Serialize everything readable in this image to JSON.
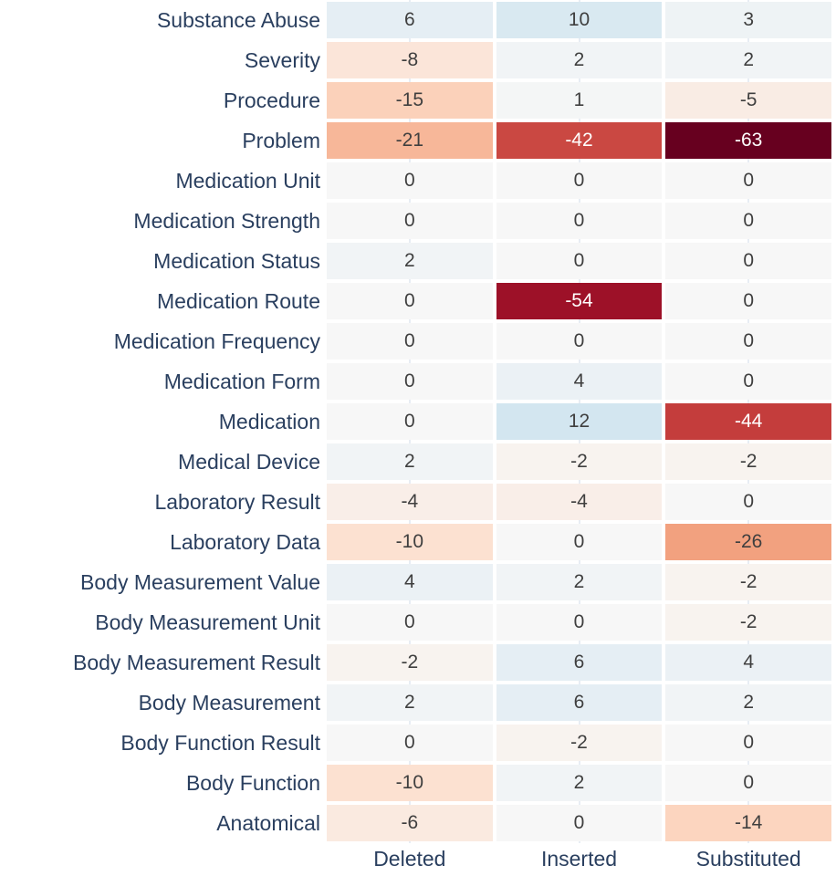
{
  "chart_data": {
    "type": "heatmap",
    "columns": [
      "Deleted",
      "Inserted",
      "Substituted"
    ],
    "rows": [
      {
        "label": "Substance Abuse",
        "values": [
          6,
          10,
          3
        ]
      },
      {
        "label": "Severity",
        "values": [
          -8,
          2,
          2
        ]
      },
      {
        "label": "Procedure",
        "values": [
          -15,
          1,
          -5
        ]
      },
      {
        "label": "Problem",
        "values": [
          -21,
          -42,
          -63
        ]
      },
      {
        "label": "Medication Unit",
        "values": [
          0,
          0,
          0
        ]
      },
      {
        "label": "Medication Strength",
        "values": [
          0,
          0,
          0
        ]
      },
      {
        "label": "Medication Status",
        "values": [
          2,
          0,
          0
        ]
      },
      {
        "label": "Medication Route",
        "values": [
          0,
          -54,
          0
        ]
      },
      {
        "label": "Medication Frequency",
        "values": [
          0,
          0,
          0
        ]
      },
      {
        "label": "Medication Form",
        "values": [
          0,
          4,
          0
        ]
      },
      {
        "label": "Medication",
        "values": [
          0,
          12,
          -44
        ]
      },
      {
        "label": "Medical Device",
        "values": [
          2,
          -2,
          -2
        ]
      },
      {
        "label": "Laboratory Result",
        "values": [
          -4,
          -4,
          0
        ]
      },
      {
        "label": "Laboratory Data",
        "values": [
          -10,
          0,
          -26
        ]
      },
      {
        "label": "Body Measurement Value",
        "values": [
          4,
          2,
          -2
        ]
      },
      {
        "label": "Body Measurement Unit",
        "values": [
          0,
          0,
          -2
        ]
      },
      {
        "label": "Body Measurement Result",
        "values": [
          -2,
          6,
          4
        ]
      },
      {
        "label": "Body Measurement",
        "values": [
          2,
          6,
          2
        ]
      },
      {
        "label": "Body Function Result",
        "values": [
          0,
          -2,
          0
        ]
      },
      {
        "label": "Body Function",
        "values": [
          -10,
          2,
          0
        ]
      },
      {
        "label": "Anatomical",
        "values": [
          -6,
          0,
          -14
        ]
      }
    ],
    "zmin": -63,
    "zmax": 63,
    "zmid": 0,
    "colorscale_name": "RdBu",
    "colorscale": [
      [
        0.0,
        "#67001f"
      ],
      [
        0.1,
        "#b2182b"
      ],
      [
        0.2,
        "#d6604d"
      ],
      [
        0.3,
        "#f4a582"
      ],
      [
        0.4,
        "#fddbc7"
      ],
      [
        0.5,
        "#f7f7f7"
      ],
      [
        0.6,
        "#d1e5f0"
      ],
      [
        0.7,
        "#92c5de"
      ],
      [
        0.8,
        "#4393c3"
      ],
      [
        0.9,
        "#2166ac"
      ],
      [
        1.0,
        "#053061"
      ]
    ],
    "legend": "none",
    "grid": "faint-vertical-column-centers"
  },
  "style": {
    "axis_label_color": "#2a3f5f",
    "value_text_dark": "#3f3f3f",
    "value_text_light": "#ffffff",
    "background": "#ffffff",
    "gridline_color": "#e8edf4"
  }
}
